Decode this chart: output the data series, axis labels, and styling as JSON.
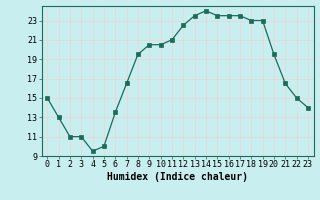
{
  "x": [
    0,
    1,
    2,
    3,
    4,
    5,
    6,
    7,
    8,
    9,
    10,
    11,
    12,
    13,
    14,
    15,
    16,
    17,
    18,
    19,
    20,
    21,
    22,
    23
  ],
  "y": [
    15,
    13,
    11,
    11,
    9.5,
    10,
    13.5,
    16.5,
    19.5,
    20.5,
    20.5,
    21,
    22.5,
    23.5,
    24,
    23.5,
    23.5,
    23.5,
    23,
    23,
    19.5,
    16.5,
    15,
    14
  ],
  "line_color": "#1a6b5a",
  "marker": "s",
  "marker_size": 2.5,
  "background_color": "#c8eef0",
  "grid_color": "#e8d8d8",
  "xlabel": "Humidex (Indice chaleur)",
  "xlim": [
    -0.5,
    23.5
  ],
  "ylim": [
    9,
    24.5
  ],
  "yticks": [
    9,
    11,
    13,
    15,
    17,
    19,
    21,
    23
  ],
  "xticks": [
    0,
    1,
    2,
    3,
    4,
    5,
    6,
    7,
    8,
    9,
    10,
    11,
    12,
    13,
    14,
    15,
    16,
    17,
    18,
    19,
    20,
    21,
    22,
    23
  ],
  "xlabel_fontsize": 7,
  "tick_fontsize": 6
}
